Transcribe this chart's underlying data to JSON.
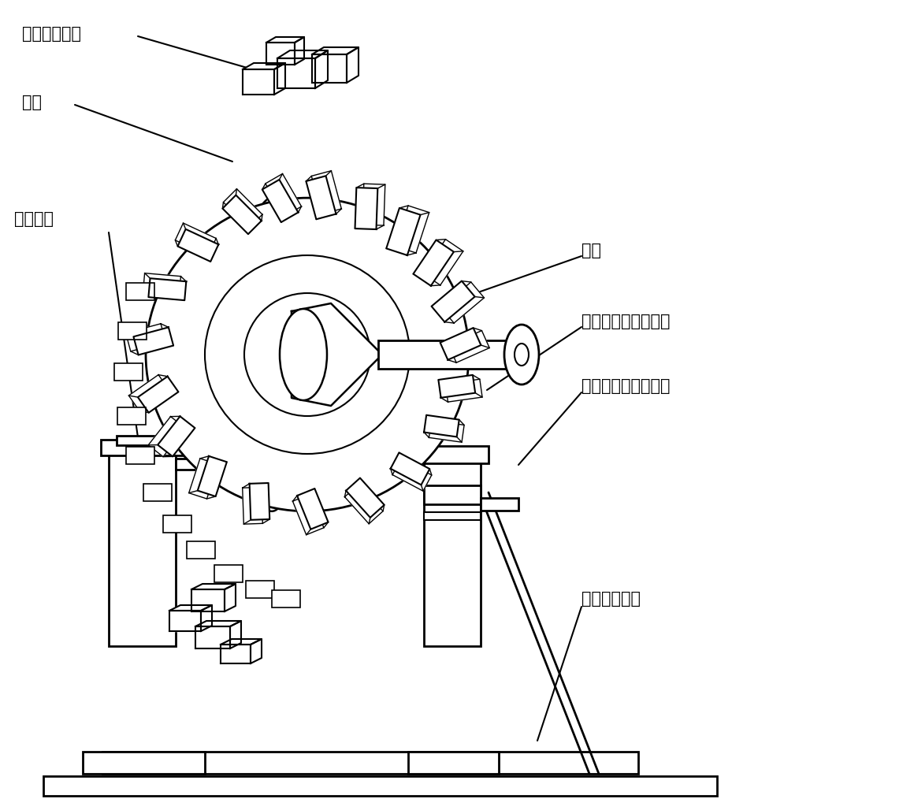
{
  "labels": {
    "graphite_electrode_block": "石墨电极压块",
    "blade": "叶片",
    "turntable_support": "转台支座",
    "blisk": "叶盘",
    "high_conductivity_shaft": "高导电率金属支撑轴",
    "high_conductivity_seat": "高导电率金属支撑座",
    "graphite_electrode_base": "石墨电极底板"
  },
  "line_color": "#000000",
  "bg_color": "#ffffff",
  "font_size": 15
}
